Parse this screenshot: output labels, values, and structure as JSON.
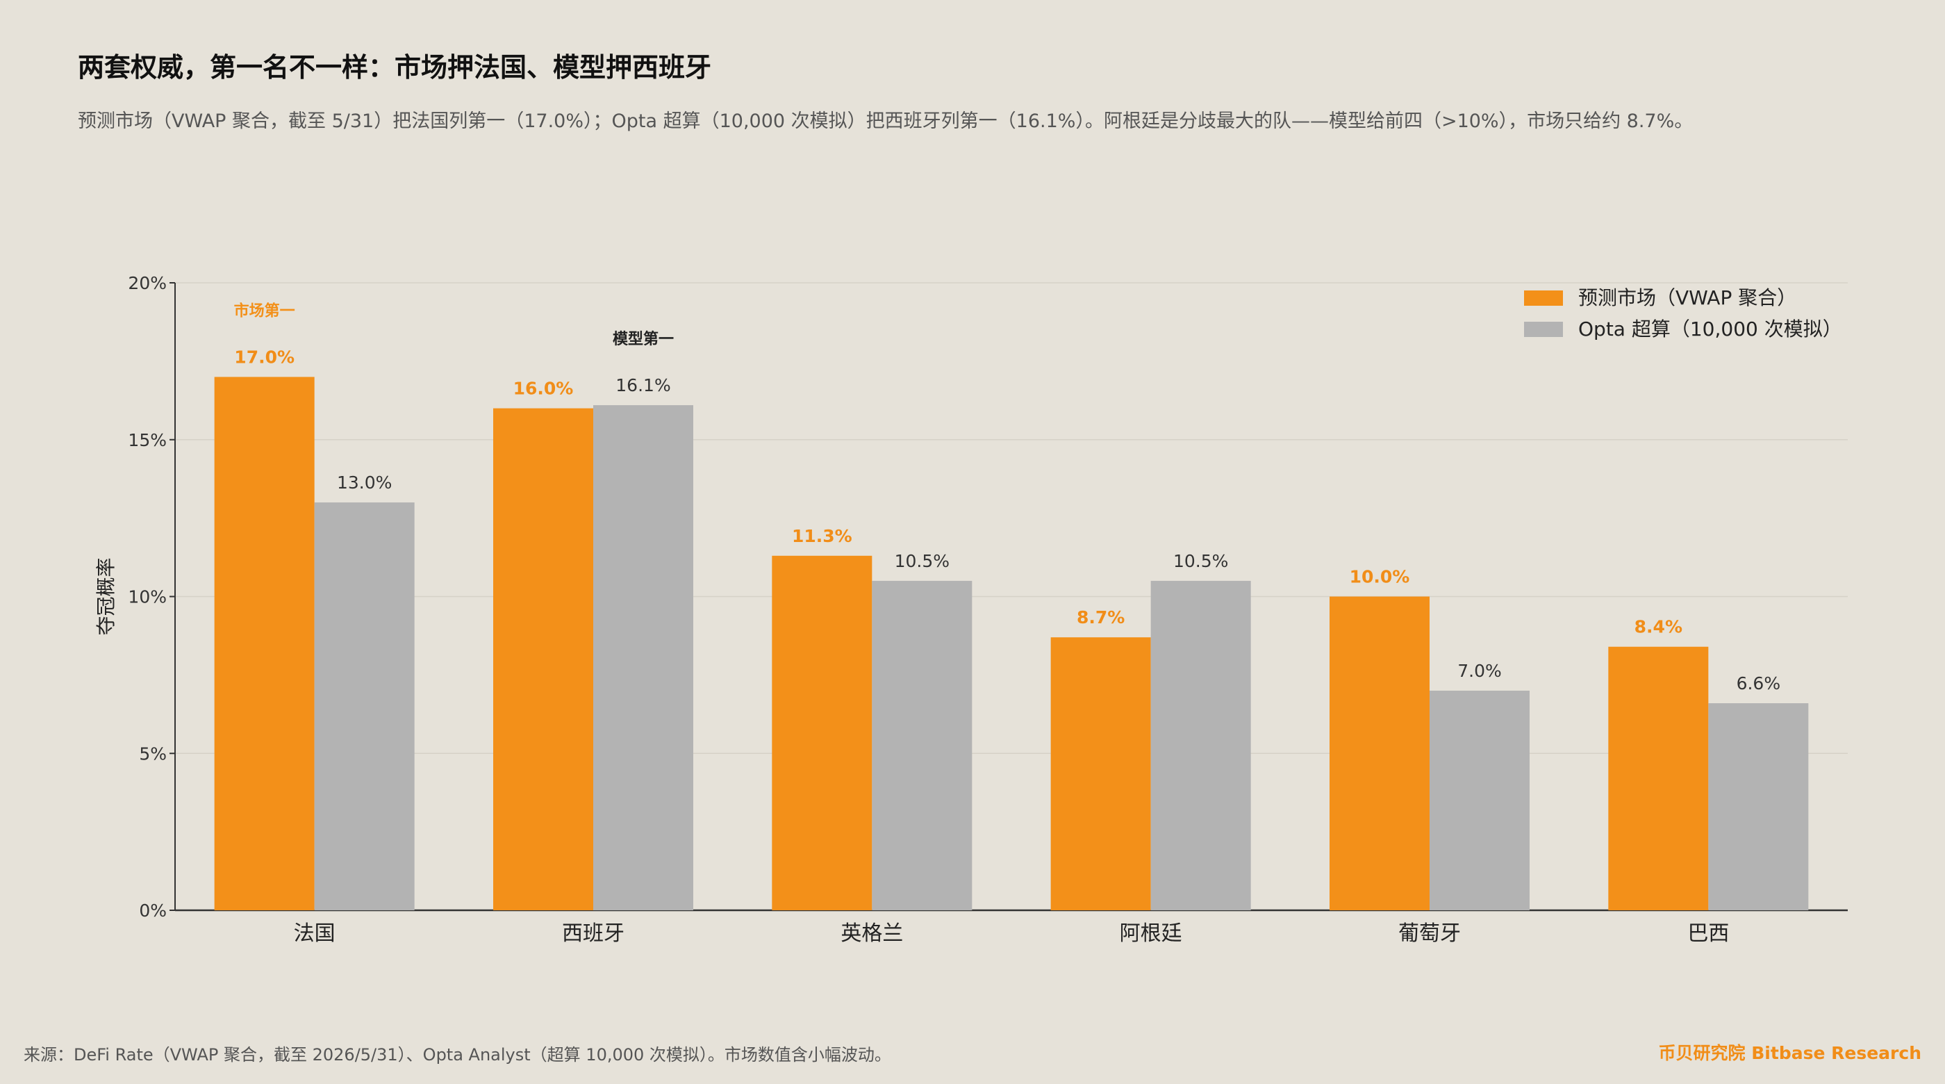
{
  "header": {
    "title": "两套权威，第一名不一样：市场押法国、模型押西班牙",
    "subtitle": "预测市场（VWAP 聚合，截至 5/31）把法国列第一（17.0%）；Opta 超算（10,000 次模拟）把西班牙列第一（16.1%）。阿根廷是分歧最大的队——模型给前四（>10%），市场只给约 8.7%。"
  },
  "chart_data": {
    "type": "bar",
    "categories": [
      "法国",
      "西班牙",
      "英格兰",
      "阿根廷",
      "葡萄牙",
      "巴西"
    ],
    "series": [
      {
        "name": "预测市场（VWAP 聚合）",
        "color": "#f39019",
        "values": [
          17.0,
          16.0,
          11.3,
          8.7,
          10.0,
          8.4
        ],
        "labels": [
          "17.0%",
          "16.0%",
          "11.3%",
          "8.7%",
          "10.0%",
          "8.4%"
        ]
      },
      {
        "name": "Opta 超算（10,000 次模拟）",
        "color": "#b3b3b3",
        "values": [
          13.0,
          16.1,
          10.5,
          10.5,
          7.0,
          6.6
        ],
        "labels": [
          "13.0%",
          "16.1%",
          "10.5%",
          "10.5%",
          "7.0%",
          "6.6%"
        ]
      }
    ],
    "ylabel": "夺冠概率",
    "xlabel": "",
    "ylim": [
      0,
      20
    ],
    "yticks": [
      0,
      5,
      10,
      15,
      20
    ],
    "ytick_labels": [
      "0%",
      "5%",
      "10%",
      "15%",
      "20%"
    ],
    "grid": true,
    "legend_position": "top-right",
    "annotations": [
      {
        "text": "市场第一",
        "category": "法国",
        "series": 0,
        "color": "#f39019"
      },
      {
        "text": "模型第一",
        "category": "西班牙",
        "series": 1,
        "color": "#222222"
      }
    ]
  },
  "footer": {
    "source": "来源：DeFi Rate（VWAP 聚合，截至 2026/5/31）、Opta Analyst（超算 10,000 次模拟）。市场数值含小幅波动。",
    "brand": "币贝研究院 Bitbase Research"
  }
}
